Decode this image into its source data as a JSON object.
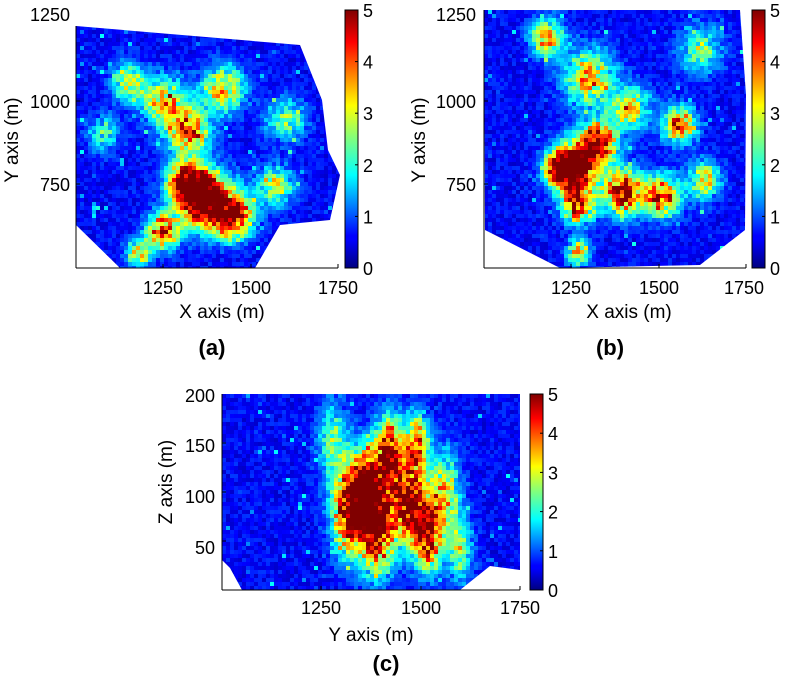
{
  "chart_data": [
    {
      "type": "heatmap",
      "panel_label": "(a)",
      "xlabel": "X axis (m)",
      "ylabel": "Y axis (m)",
      "xlim": [
        1000,
        1750
      ],
      "ylim": [
        600,
        1250
      ],
      "xticks": [
        "1250",
        "1500",
        "1750"
      ],
      "yticks": [
        "750",
        "1000",
        "1250"
      ],
      "colorbar": {
        "range": [
          0,
          5
        ],
        "ticks": [
          "0",
          "1",
          "2",
          "3",
          "4",
          "5"
        ]
      },
      "clusters": [
        {
          "x": 1375,
          "y": 780,
          "r": 75,
          "v": 5.2
        },
        {
          "x": 1320,
          "y": 830,
          "r": 55,
          "v": 5.0
        },
        {
          "x": 1450,
          "y": 740,
          "r": 55,
          "v": 4.6
        },
        {
          "x": 1250,
          "y": 700,
          "r": 45,
          "v": 4.2
        },
        {
          "x": 1320,
          "y": 970,
          "r": 60,
          "v": 3.8
        },
        {
          "x": 1250,
          "y": 1050,
          "r": 60,
          "v": 3.0
        },
        {
          "x": 1420,
          "y": 1080,
          "r": 60,
          "v": 3.0
        },
        {
          "x": 1150,
          "y": 1100,
          "r": 50,
          "v": 2.4
        },
        {
          "x": 1570,
          "y": 820,
          "r": 50,
          "v": 2.6
        },
        {
          "x": 1600,
          "y": 1000,
          "r": 55,
          "v": 2.0
        },
        {
          "x": 1180,
          "y": 640,
          "r": 35,
          "v": 2.8
        },
        {
          "x": 1080,
          "y": 960,
          "r": 45,
          "v": 1.7
        }
      ]
    },
    {
      "type": "heatmap",
      "panel_label": "(b)",
      "xlabel": "X axis (m)",
      "ylabel": "Y axis (m)",
      "xlim": [
        1000,
        1750
      ],
      "ylim": [
        600,
        1250
      ],
      "xticks": [
        "1250",
        "1500",
        "1750"
      ],
      "yticks": [
        "750",
        "1000",
        "1250"
      ],
      "colorbar": {
        "range": [
          0,
          5
        ],
        "ticks": [
          "0",
          "1",
          "2",
          "3",
          "4",
          "5"
        ]
      },
      "clusters": [
        {
          "x": 1270,
          "y": 860,
          "r": 60,
          "v": 5.0
        },
        {
          "x": 1220,
          "y": 850,
          "r": 45,
          "v": 4.8
        },
        {
          "x": 1330,
          "y": 920,
          "r": 50,
          "v": 4.4
        },
        {
          "x": 1400,
          "y": 790,
          "r": 55,
          "v": 4.8
        },
        {
          "x": 1270,
          "y": 760,
          "r": 45,
          "v": 4.4
        },
        {
          "x": 1510,
          "y": 780,
          "r": 50,
          "v": 4.2
        },
        {
          "x": 1560,
          "y": 960,
          "r": 45,
          "v": 3.8
        },
        {
          "x": 1300,
          "y": 1080,
          "r": 70,
          "v": 3.0
        },
        {
          "x": 1180,
          "y": 1180,
          "r": 45,
          "v": 3.2
        },
        {
          "x": 1420,
          "y": 1000,
          "r": 55,
          "v": 2.6
        },
        {
          "x": 1630,
          "y": 820,
          "r": 45,
          "v": 2.8
        },
        {
          "x": 1270,
          "y": 640,
          "r": 30,
          "v": 3.6
        },
        {
          "x": 1620,
          "y": 1150,
          "r": 60,
          "v": 2.0
        }
      ]
    },
    {
      "type": "heatmap",
      "panel_label": "(c)",
      "xlabel": "Y axis (m)",
      "ylabel": "Z axis (m)",
      "xlim": [
        1000,
        1750
      ],
      "ylim": [
        0,
        200
      ],
      "xticks": [
        "1250",
        "1500",
        "1750"
      ],
      "yticks": [
        "50",
        "100",
        "150",
        "200"
      ],
      "colorbar": {
        "range": [
          0,
          5
        ],
        "ticks": [
          "0",
          "1",
          "2",
          "3",
          "4",
          "5"
        ]
      },
      "clusters": [
        {
          "x": 1320,
          "y": 80,
          "r": 40,
          "v": 5.0
        },
        {
          "x": 1390,
          "y": 65,
          "r": 45,
          "v": 5.0
        },
        {
          "x": 1420,
          "y": 140,
          "r": 35,
          "v": 4.8
        },
        {
          "x": 1470,
          "y": 90,
          "r": 40,
          "v": 4.8
        },
        {
          "x": 1520,
          "y": 55,
          "r": 35,
          "v": 4.4
        },
        {
          "x": 1490,
          "y": 150,
          "r": 30,
          "v": 3.4
        },
        {
          "x": 1360,
          "y": 110,
          "r": 35,
          "v": 4.2
        },
        {
          "x": 1560,
          "y": 100,
          "r": 40,
          "v": 2.6
        },
        {
          "x": 1280,
          "y": 150,
          "r": 40,
          "v": 1.8
        },
        {
          "x": 1600,
          "y": 40,
          "r": 30,
          "v": 2.2
        }
      ]
    }
  ]
}
